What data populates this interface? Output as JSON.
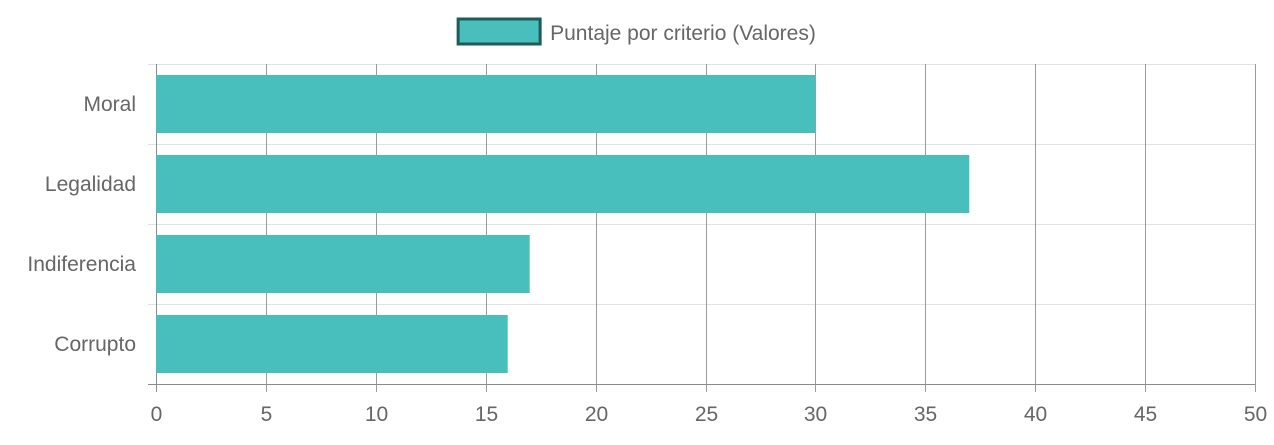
{
  "chart_data": {
    "type": "bar",
    "orientation": "horizontal",
    "title": "",
    "xlabel": "",
    "ylabel": "",
    "categories": [
      "Moral",
      "Legalidad",
      "Indiferencia",
      "Corrupto"
    ],
    "series": [
      {
        "name": "Puntaje por criterio (Valores)",
        "values": [
          30,
          37,
          17,
          16
        ],
        "color": "#48bfbc",
        "border_color": "#1e5c5a"
      }
    ],
    "xlim": [
      0,
      50
    ],
    "x_ticks": [
      "0",
      "5",
      "10",
      "15",
      "20",
      "25",
      "30",
      "35",
      "40",
      "45",
      "50"
    ],
    "grid": true,
    "legend_position": "top-center"
  },
  "colors": {
    "grid": "#e2e2e2",
    "grid_vertical": "#8a8a8a",
    "text": "#666666",
    "axis": "#8a8a8a"
  }
}
